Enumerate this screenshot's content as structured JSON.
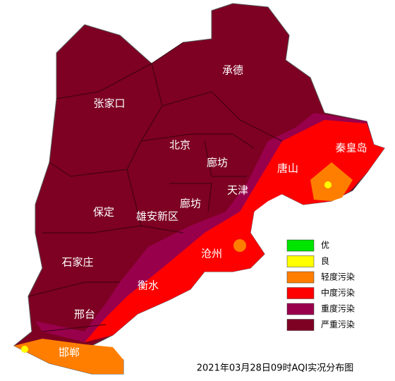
{
  "map": {
    "caption": "2021年03月28日09时AQI实况分布图",
    "cities": [
      "张家口",
      "承德",
      "北京",
      "廊坊",
      "唐山",
      "秦皇岛",
      "天津",
      "廊坊",
      "保定",
      "雄安新区",
      "沧州",
      "石家庄",
      "衡水",
      "邢台",
      "邯郸"
    ],
    "legend": [
      {
        "label": "优",
        "color": "#00e400"
      },
      {
        "label": "良",
        "color": "#ffff00"
      },
      {
        "label": "轻度污染",
        "color": "#ff7e00"
      },
      {
        "label": "中度污染",
        "color": "#ff0000"
      },
      {
        "label": "重度污染",
        "color": "#99004c"
      },
      {
        "label": "严重污染",
        "color": "#7e0023"
      }
    ]
  }
}
